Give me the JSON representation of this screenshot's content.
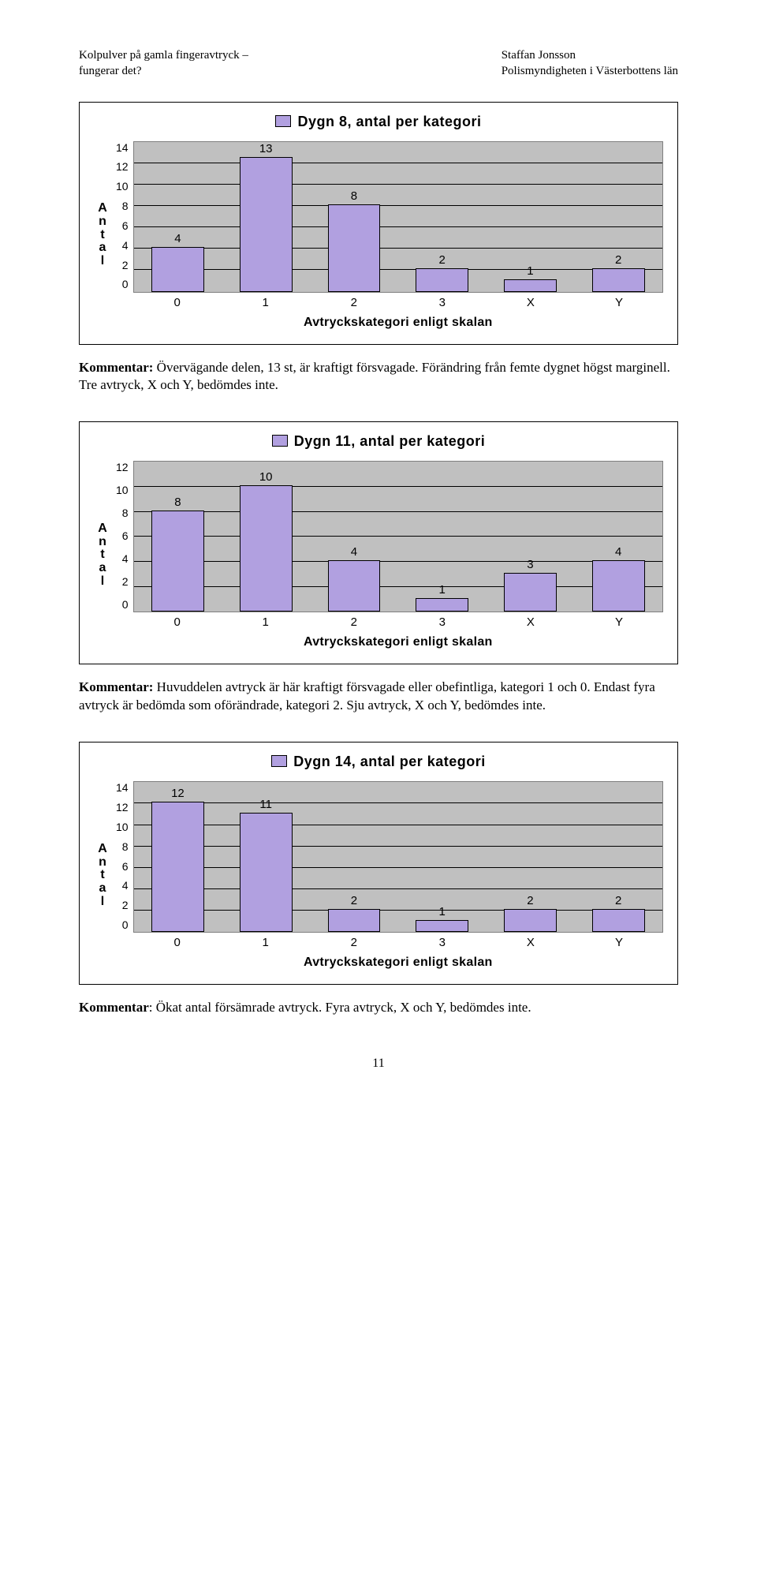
{
  "header": {
    "left_line1": "Kolpulver på gamla fingeravtryck –",
    "left_line2": "fungerar det?",
    "right_line1": "Staffan Jonsson",
    "right_line2": "Polismyndigheten i Västerbottens län"
  },
  "commentary1": {
    "lead": "Kommentar:",
    "text": " Övervägande delen, 13 st, är kraftigt försvagade. Förändring från femte dygnet högst marginell. Tre avtryck, X och Y, bedömdes inte."
  },
  "commentary2": {
    "lead": "Kommentar:",
    "text": " Huvuddelen avtryck är här kraftigt försvagade eller obefintliga, kategori 1 och 0. Endast fyra avtryck är bedömda som oförändrade, kategori 2. Sju avtryck, X och Y, bedömdes inte."
  },
  "commentary3": {
    "lead": "Kommentar",
    "text": ": Ökat antal försämrade avtryck. Fyra avtryck, X och Y, bedömdes inte."
  },
  "xlabel": "Avtryckskategori enligt skalan",
  "ylabel_chars": [
    "A",
    "n",
    "t",
    "a",
    "l"
  ],
  "categories": [
    "0",
    "1",
    "2",
    "3",
    "X",
    "Y"
  ],
  "chart1": {
    "title": "Dygn 8, antal per kategori",
    "swatch_color": "#b1a0e0",
    "values": [
      4,
      13,
      8,
      2,
      1,
      2
    ],
    "ymax": 14,
    "ytick_step": 2,
    "plot_bg": "#c0c0c0",
    "grid_color": "#000000",
    "border_color": "#7f7f7f"
  },
  "chart2": {
    "title": "Dygn 11, antal per kategori",
    "swatch_color": "#b1a0e0",
    "values": [
      8,
      10,
      4,
      1,
      3,
      4
    ],
    "ymax": 12,
    "ytick_step": 2,
    "plot_bg": "#c0c0c0",
    "grid_color": "#000000",
    "border_color": "#7f7f7f"
  },
  "chart3": {
    "title": "Dygn 14, antal per kategori",
    "swatch_color": "#b1a0e0",
    "values": [
      12,
      11,
      2,
      1,
      2,
      2
    ],
    "ymax": 14,
    "ytick_step": 2,
    "plot_bg": "#c0c0c0",
    "grid_color": "#000000",
    "border_color": "#7f7f7f"
  },
  "page_number": "11"
}
